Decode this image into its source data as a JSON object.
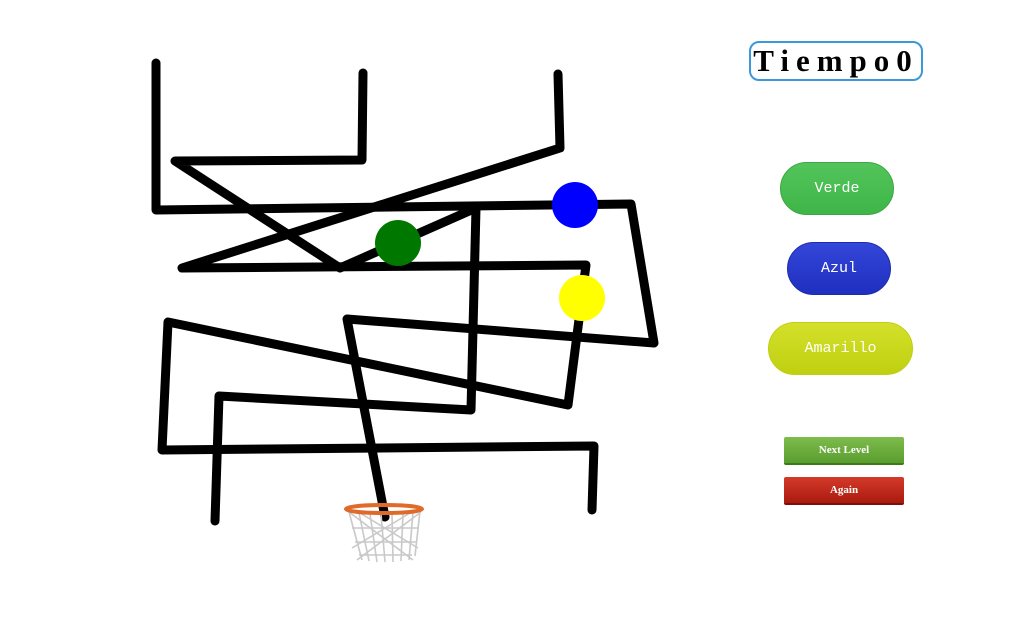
{
  "hud": {
    "timer_label": "Tiempo",
    "timer_value": "0"
  },
  "controls": {
    "green_label": "Verde",
    "blue_label": "Azul",
    "yellow_label": "Amarillo",
    "next_level_label": "Next Level",
    "again_label": "Again"
  },
  "game": {
    "balls": [
      {
        "name": "green-ball",
        "color": "#007800"
      },
      {
        "name": "blue-ball",
        "color": "#0000ff"
      },
      {
        "name": "yellow-ball",
        "color": "#ffff00"
      }
    ],
    "track_color": "#000000",
    "hoop_rim_color": "#e06a2a"
  }
}
